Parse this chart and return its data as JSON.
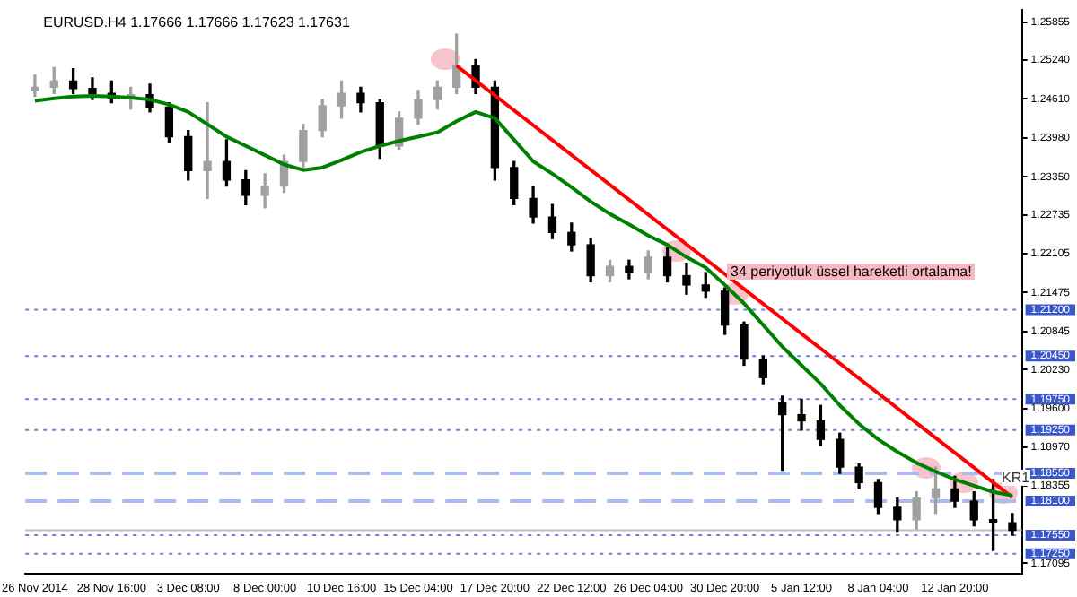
{
  "chart_data": {
    "type": "candlestick",
    "title": "EURUSD.H4 1.17666 1.17666 1.17623 1.17631",
    "categories": [
      "26 Nov 2014",
      null,
      null,
      null,
      "28 Nov 16:00",
      null,
      null,
      null,
      "3 Dec 08:00",
      null,
      null,
      null,
      "8 Dec 00:00",
      null,
      null,
      null,
      "10 Dec 16:00",
      null,
      null,
      null,
      "15 Dec 04:00",
      null,
      null,
      null,
      "17 Dec 20:00",
      null,
      null,
      null,
      "22 Dec 12:00",
      null,
      null,
      null,
      "26 Dec 04:00",
      null,
      null,
      null,
      "30 Dec 20:00",
      null,
      null,
      null,
      "5 Jan 12:00",
      null,
      null,
      null,
      "8 Jan 04:00",
      null,
      null,
      null,
      "12 Jan 20:00",
      null,
      null,
      null
    ],
    "ohlc": [
      [
        1.2475,
        1.25,
        1.2465,
        1.248
      ],
      [
        1.248,
        1.2512,
        1.247,
        1.249
      ],
      [
        1.249,
        1.251,
        1.247,
        1.2478
      ],
      [
        1.2478,
        1.2495,
        1.246,
        1.247
      ],
      [
        1.247,
        1.249,
        1.2455,
        1.2462
      ],
      [
        1.2462,
        1.248,
        1.2445,
        1.2468
      ],
      [
        1.2468,
        1.2485,
        1.244,
        1.2448
      ],
      [
        1.2448,
        1.2455,
        1.239,
        1.24
      ],
      [
        1.24,
        1.241,
        1.233,
        1.2345
      ],
      [
        1.2345,
        1.2455,
        1.23,
        1.236
      ],
      [
        1.236,
        1.2395,
        1.232,
        1.233
      ],
      [
        1.233,
        1.2345,
        1.229,
        1.2305
      ],
      [
        1.2305,
        1.234,
        1.2285,
        1.232
      ],
      [
        1.232,
        1.237,
        1.231,
        1.236
      ],
      [
        1.236,
        1.242,
        1.235,
        1.241
      ],
      [
        1.241,
        1.246,
        1.24,
        1.245
      ],
      [
        1.245,
        1.249,
        1.243,
        1.247
      ],
      [
        1.247,
        1.248,
        1.244,
        1.2455
      ],
      [
        1.2455,
        1.246,
        1.2365,
        1.2385
      ],
      [
        1.2385,
        1.244,
        1.238,
        1.243
      ],
      [
        1.243,
        1.2475,
        1.242,
        1.246
      ],
      [
        1.246,
        1.249,
        1.2445,
        1.248
      ],
      [
        1.248,
        1.2566,
        1.247,
        1.2515
      ],
      [
        1.2515,
        1.2525,
        1.247,
        1.248
      ],
      [
        1.248,
        1.249,
        1.233,
        1.235
      ],
      [
        1.235,
        1.236,
        1.229,
        1.23
      ],
      [
        1.23,
        1.232,
        1.226,
        1.227
      ],
      [
        1.227,
        1.229,
        1.2235,
        1.2245
      ],
      [
        1.2245,
        1.226,
        1.2215,
        1.2225
      ],
      [
        1.2225,
        1.2235,
        1.2165,
        1.2175
      ],
      [
        1.2175,
        1.22,
        1.2165,
        1.219
      ],
      [
        1.219,
        1.22,
        1.217,
        1.218
      ],
      [
        1.218,
        1.2215,
        1.217,
        1.2205
      ],
      [
        1.2205,
        1.222,
        1.2165,
        1.2175
      ],
      [
        1.2175,
        1.2195,
        1.2145,
        1.216
      ],
      [
        1.216,
        1.218,
        1.214,
        1.215
      ],
      [
        1.215,
        1.2155,
        1.208,
        1.2095
      ],
      [
        1.2095,
        1.21,
        1.203,
        1.204
      ],
      [
        1.204,
        1.2045,
        1.2,
        1.201
      ],
      [
        1.197,
        1.198,
        1.186,
        1.195
      ],
      [
        1.195,
        1.1975,
        1.1925,
        1.194
      ],
      [
        1.194,
        1.1965,
        1.19,
        1.191
      ],
      [
        1.191,
        1.192,
        1.1855,
        1.1865
      ],
      [
        1.1865,
        1.187,
        1.183,
        1.184
      ],
      [
        1.184,
        1.1845,
        1.179,
        1.18
      ],
      [
        1.18,
        1.1815,
        1.176,
        1.178
      ],
      [
        1.178,
        1.1825,
        1.1765,
        1.1815
      ],
      [
        1.1815,
        1.1865,
        1.179,
        1.183
      ],
      [
        1.183,
        1.185,
        1.18,
        1.181
      ],
      [
        1.181,
        1.1825,
        1.177,
        1.178
      ],
      [
        1.178,
        1.1845,
        1.173,
        1.1775
      ],
      [
        1.1775,
        1.179,
        1.1755,
        1.1763
      ]
    ],
    "colors": [
      "#a0a0a0",
      "#a0a0a0",
      "#000000",
      "#000000",
      "#000000",
      "#a0a0a0",
      "#000000",
      "#000000",
      "#000000",
      "#a0a0a0",
      "#000000",
      "#000000",
      "#a0a0a0",
      "#a0a0a0",
      "#a0a0a0",
      "#a0a0a0",
      "#a0a0a0",
      "#000000",
      "#000000",
      "#a0a0a0",
      "#a0a0a0",
      "#a0a0a0",
      "#a0a0a0",
      "#000000",
      "#000000",
      "#000000",
      "#000000",
      "#000000",
      "#000000",
      "#000000",
      "#a0a0a0",
      "#000000",
      "#a0a0a0",
      "#000000",
      "#000000",
      "#000000",
      "#000000",
      "#000000",
      "#000000",
      "#000000",
      "#000000",
      "#000000",
      "#000000",
      "#000000",
      "#000000",
      "#000000",
      "#a0a0a0",
      "#a0a0a0",
      "#000000",
      "#000000",
      "#000000",
      "#000000"
    ],
    "series": [
      {
        "type": "line",
        "color": "#008000",
        "values": [
          1.2458,
          1.2462,
          1.2465,
          1.2466,
          1.2465,
          1.2463,
          1.246,
          1.2452,
          1.244,
          1.242,
          1.24,
          1.2385,
          1.237,
          1.2355,
          1.2346,
          1.235,
          1.2362,
          1.2375,
          1.2385,
          1.2393,
          1.24,
          1.2407,
          1.2425,
          1.244,
          1.243,
          1.2395,
          1.236,
          1.234,
          1.2318,
          1.2295,
          1.2275,
          1.2258,
          1.224,
          1.2225,
          1.2205,
          1.2188,
          1.216,
          1.213,
          1.2095,
          1.206,
          1.203,
          1.2,
          1.1965,
          1.1935,
          1.191,
          1.189,
          1.1872,
          1.1858,
          1.1845,
          1.1835,
          1.1825,
          1.1819
        ]
      },
      {
        "type": "line",
        "color": "#ff0000",
        "values": [
          null,
          null,
          null,
          null,
          null,
          null,
          null,
          null,
          null,
          null,
          null,
          null,
          null,
          null,
          null,
          null,
          null,
          null,
          null,
          null,
          null,
          null,
          1.2515,
          null,
          null,
          null,
          null,
          null,
          null,
          null,
          null,
          null,
          null,
          null,
          null,
          null,
          null,
          null,
          null,
          null,
          null,
          null,
          null,
          null,
          null,
          null,
          null,
          null,
          null,
          null,
          null,
          1.1816
        ]
      }
    ],
    "ylim": [
      1.1692,
      1.2605
    ],
    "yticks": [
      {
        "value": 1.25855,
        "label": "1.25855"
      },
      {
        "value": 1.2524,
        "label": "1.25240"
      },
      {
        "value": 1.2461,
        "label": "1.24610"
      },
      {
        "value": 1.2398,
        "label": "1.23980"
      },
      {
        "value": 1.2335,
        "label": "1.23350"
      },
      {
        "value": 1.22735,
        "label": "1.22735"
      },
      {
        "value": 1.22105,
        "label": "1.22105"
      },
      {
        "value": 1.21475,
        "label": "1.21475"
      },
      {
        "value": 1.20845,
        "label": "1.20845"
      },
      {
        "value": 1.2023,
        "label": "1.20230"
      },
      {
        "value": 1.196,
        "label": "1.19600"
      },
      {
        "value": 1.1897,
        "label": "1.18970"
      },
      {
        "value": 1.18355,
        "label": "1.18355"
      },
      {
        "value": 1.17095,
        "label": "1.17095"
      }
    ],
    "ref_lines": [
      {
        "axis": "y",
        "value": 1.212,
        "label": "1.21200",
        "color": "#6f7fd8",
        "line_style": "dotted"
      },
      {
        "axis": "y",
        "value": 1.2045,
        "label": "1.20450",
        "color": "#6f7fd8",
        "line_style": "dotted"
      },
      {
        "axis": "y",
        "value": 1.1975,
        "label": "1.19750",
        "color": "#6f7fd8",
        "line_style": "dotted"
      },
      {
        "axis": "y",
        "value": 1.1925,
        "label": "1.19250",
        "color": "#6f7fd8",
        "line_style": "dotted"
      },
      {
        "axis": "y",
        "value": 1.1855,
        "label": "1.18550",
        "color": "#a9bbf0",
        "line_style": "dashed"
      },
      {
        "axis": "y",
        "value": 1.181,
        "label": "1.18100",
        "color": "#a9bbf0",
        "line_style": "dashed"
      },
      {
        "axis": "y",
        "value": 1.17631,
        "color": "#c0c0c0",
        "line_style": "solid"
      },
      {
        "axis": "y",
        "value": 1.1755,
        "label": "1.17550",
        "color": "#6f7fd8",
        "line_style": "dotted"
      },
      {
        "axis": "y",
        "value": 1.1725,
        "label": "1.17250",
        "color": "#6f7fd8",
        "line_style": "dotted"
      }
    ],
    "annotations": [
      "34 periyotluk üssel hareketli ortalama!",
      "KR1"
    ],
    "grid": false,
    "legend": false
  }
}
